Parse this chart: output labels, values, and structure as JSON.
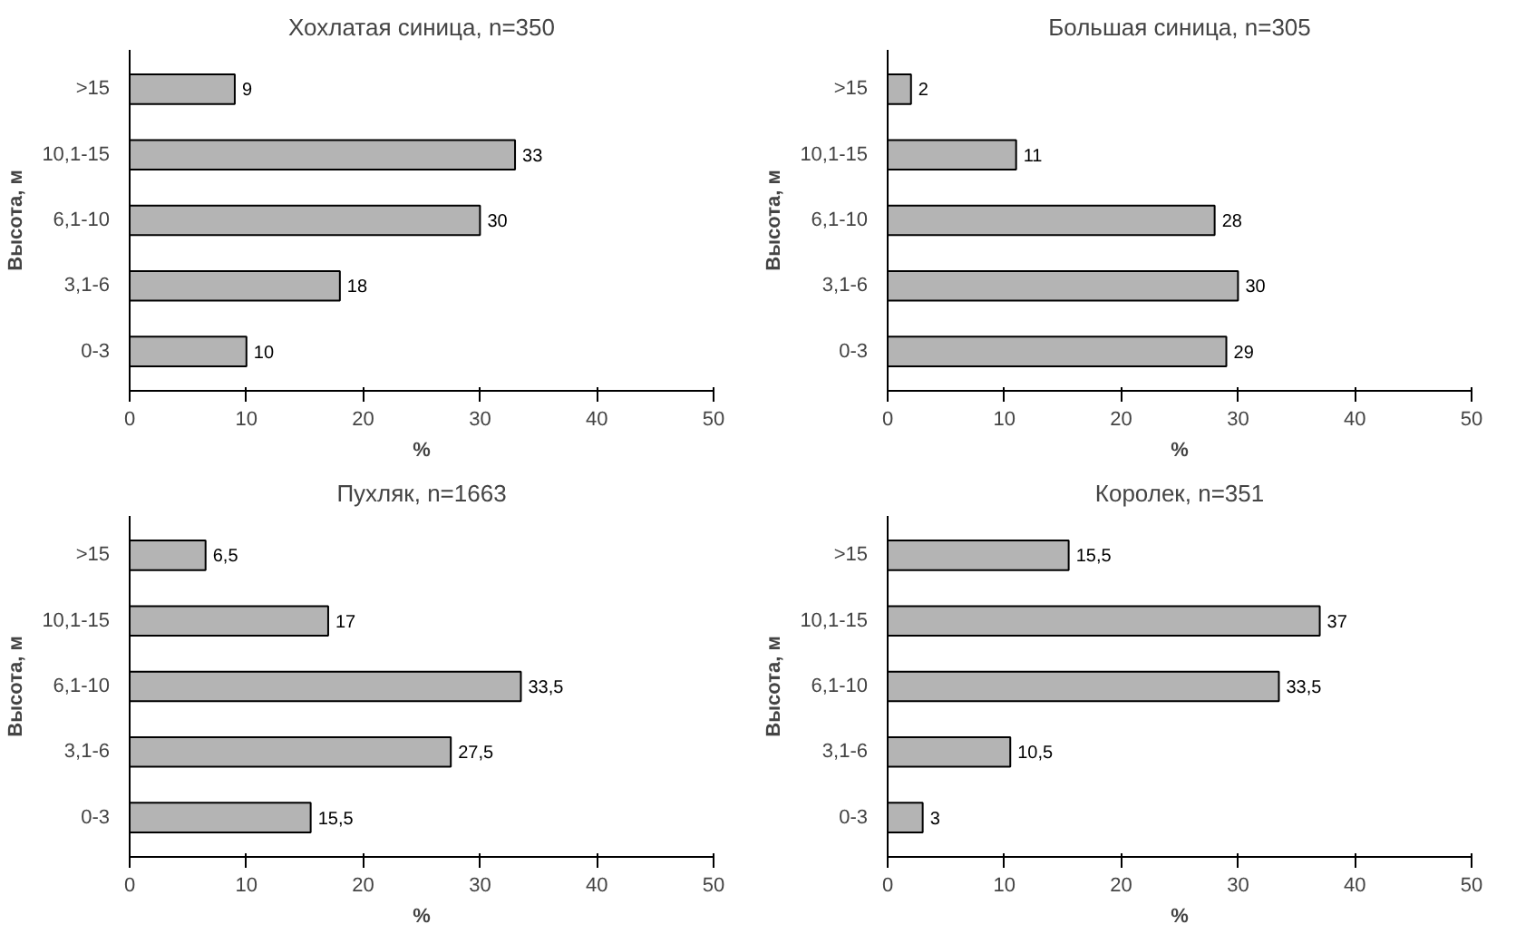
{
  "chart_data": [
    {
      "type": "bar",
      "orientation": "horizontal",
      "title": "Хохлатая синица, n=350",
      "xlabel": "%",
      "ylabel": "Высота, м",
      "categories": [
        ">15",
        "10,1-15",
        "6,1-10",
        "3,1-6",
        "0-3"
      ],
      "values": [
        9,
        33,
        30,
        18,
        10
      ],
      "value_labels": [
        "9",
        "33",
        "30",
        "18",
        "10"
      ],
      "color": "#b4b4b4",
      "xlim": [
        0,
        50
      ],
      "xticks": [
        0,
        10,
        20,
        30,
        40,
        50
      ],
      "grid": false
    },
    {
      "type": "bar",
      "orientation": "horizontal",
      "title": "Большая синица, n=305",
      "xlabel": "%",
      "ylabel": "Высота, м",
      "categories": [
        ">15",
        "10,1-15",
        "6,1-10",
        "3,1-6",
        "0-3"
      ],
      "values": [
        2,
        11,
        28,
        30,
        29
      ],
      "value_labels": [
        "2",
        "11",
        "28",
        "30",
        "29"
      ],
      "color": "#b4b4b4",
      "xlim": [
        0,
        50
      ],
      "xticks": [
        0,
        10,
        20,
        30,
        40,
        50
      ],
      "grid": false
    },
    {
      "type": "bar",
      "orientation": "horizontal",
      "title": "Пухляк, n=1663",
      "xlabel": "%",
      "ylabel": "Высота, м",
      "categories": [
        ">15",
        "10,1-15",
        "6,1-10",
        "3,1-6",
        "0-3"
      ],
      "values": [
        6.5,
        17,
        33.5,
        27.5,
        15.5
      ],
      "value_labels": [
        "6,5",
        "17",
        "33,5",
        "27,5",
        "15,5"
      ],
      "color": "#b4b4b4",
      "xlim": [
        0,
        50
      ],
      "xticks": [
        0,
        10,
        20,
        30,
        40,
        50
      ],
      "grid": false
    },
    {
      "type": "bar",
      "orientation": "horizontal",
      "title": "Королек, n=351",
      "xlabel": "%",
      "ylabel": "Высота, м",
      "categories": [
        ">15",
        "10,1-15",
        "6,1-10",
        "3,1-6",
        "0-3"
      ],
      "values": [
        15.5,
        37,
        33.5,
        10.5,
        3
      ],
      "value_labels": [
        "15,5",
        "37",
        "33,5",
        "10,5",
        "3"
      ],
      "color": "#b4b4b4",
      "xlim": [
        0,
        50
      ],
      "xticks": [
        0,
        10,
        20,
        30,
        40,
        50
      ],
      "grid": false
    }
  ]
}
